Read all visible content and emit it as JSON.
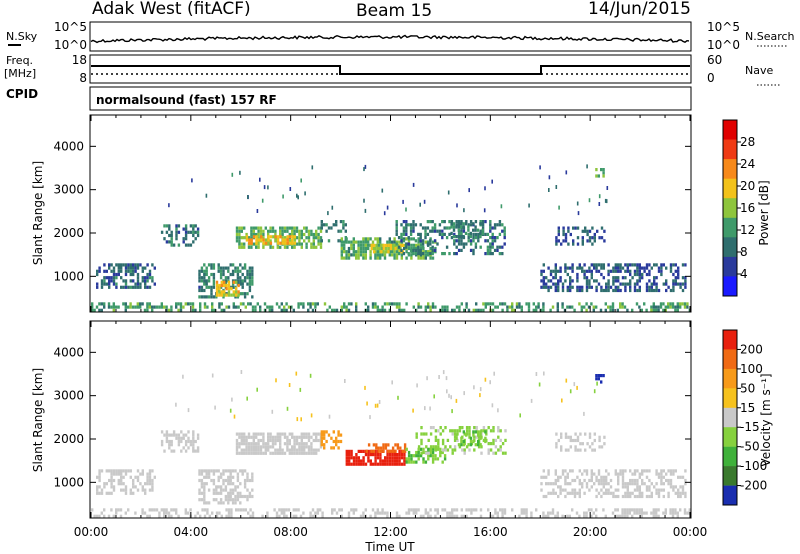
{
  "header": {
    "radar": "Adak West (fitACF)",
    "beam": "Beam 15",
    "date": "14/Jun/2015"
  },
  "noise_panel": {
    "left_label": "N.Sky",
    "right_label": "N.Search",
    "ticks_left": [
      "10^5",
      "10^0"
    ],
    "ticks_right": [
      "10^5",
      "10^0"
    ]
  },
  "freq_panel": {
    "left_label_1": "Freq.",
    "left_label_2": "[MHz]",
    "right_label": "Nave",
    "ticks_left": [
      "18",
      "8"
    ],
    "ticks_right": [
      "60",
      "0"
    ]
  },
  "cpid_panel": {
    "label": "CPID",
    "text": "normalsound (fast) 157 RF"
  },
  "colors": {
    "power_scale": [
      "#1a1aff",
      "#2a3a9c",
      "#2f6e6e",
      "#3f9a6a",
      "#8ec53c",
      "#f3c21a",
      "#f7891a",
      "#ef3a14",
      "#e00000"
    ],
    "velocity_scale": [
      "#1a2eb0",
      "#3a7a2e",
      "#3fb13a",
      "#86d13e",
      "#c9c9c9",
      "#f6c21e",
      "#f79a1a",
      "#f06a14",
      "#e8200e"
    ]
  },
  "chart_data": [
    {
      "type": "heatmap",
      "name": "power",
      "xlabel": "",
      "ylabel": "Slant Range [km]",
      "y_ticks": [
        "1000",
        "2000",
        "3000",
        "4000"
      ],
      "ylim": [
        200,
        4700
      ],
      "xlim": [
        0,
        24
      ],
      "colorbar": {
        "label": "Power [dB]",
        "ticks": [
          "4",
          "8",
          "12",
          "16",
          "20",
          "24",
          "28"
        ]
      },
      "regions": [
        {
          "t0": 0.2,
          "t1": 2.6,
          "r0": 750,
          "r1": 1300,
          "v": 8,
          "d": 0.55
        },
        {
          "t0": 2.8,
          "t1": 4.3,
          "r0": 1700,
          "r1": 2200,
          "v": 9,
          "d": 0.45
        },
        {
          "t0": 4.3,
          "t1": 6.5,
          "r0": 550,
          "r1": 1300,
          "v": 10,
          "d": 0.55
        },
        {
          "t0": 5.0,
          "t1": 5.9,
          "r0": 550,
          "r1": 900,
          "v": 19,
          "d": 0.75
        },
        {
          "t0": 5.8,
          "t1": 9.2,
          "r0": 1650,
          "r1": 2150,
          "v": 14,
          "d": 0.7
        },
        {
          "t0": 6.2,
          "t1": 8.2,
          "r0": 1800,
          "r1": 1950,
          "v": 20,
          "d": 0.7
        },
        {
          "t0": 9.2,
          "t1": 10.2,
          "r0": 1800,
          "r1": 2300,
          "v": 10,
          "d": 0.45
        },
        {
          "t0": 10.0,
          "t1": 13.8,
          "r0": 1450,
          "r1": 1900,
          "v": 13,
          "d": 0.7
        },
        {
          "t0": 11.2,
          "t1": 12.5,
          "r0": 1600,
          "r1": 1750,
          "v": 17,
          "d": 0.65
        },
        {
          "t0": 12.2,
          "t1": 16.6,
          "r0": 1550,
          "r1": 2300,
          "v": 9,
          "d": 0.45
        },
        {
          "t0": 14.4,
          "t1": 15.7,
          "r0": 1900,
          "r1": 2250,
          "v": 11,
          "d": 0.5
        },
        {
          "t0": 18.0,
          "t1": 23.8,
          "r0": 650,
          "r1": 1300,
          "v": 7,
          "d": 0.5
        },
        {
          "t0": 18.6,
          "t1": 20.6,
          "r0": 1750,
          "r1": 2150,
          "v": 7,
          "d": 0.35
        },
        {
          "t0": 20.2,
          "t1": 20.5,
          "r0": 3300,
          "r1": 3500,
          "v": 14,
          "d": 0.6
        },
        {
          "t0": 0.0,
          "t1": 24.0,
          "r0": 200,
          "r1": 400,
          "v": 12,
          "d": 0.45
        }
      ]
    },
    {
      "type": "heatmap",
      "name": "velocity",
      "xlabel": "Time UT",
      "ylabel": "Slant Range [km]",
      "x_ticks": [
        "00:00",
        "04:00",
        "08:00",
        "12:00",
        "16:00",
        "20:00",
        "00:00"
      ],
      "y_ticks": [
        "1000",
        "2000",
        "3000",
        "4000"
      ],
      "ylim": [
        200,
        4700
      ],
      "xlim": [
        0,
        24
      ],
      "colorbar": {
        "label": "Velocity [m s⁻¹]",
        "ticks": [
          "200",
          "100",
          "50",
          "15",
          "-15",
          "-50",
          "-100",
          "-200"
        ]
      },
      "regions": [
        {
          "t0": 0.2,
          "t1": 2.6,
          "r0": 750,
          "r1": 1300,
          "v": 0,
          "d": 0.5
        },
        {
          "t0": 2.8,
          "t1": 4.3,
          "r0": 1700,
          "r1": 2200,
          "v": 0,
          "d": 0.4
        },
        {
          "t0": 4.3,
          "t1": 6.5,
          "r0": 550,
          "r1": 1300,
          "v": 0,
          "d": 0.55
        },
        {
          "t0": 5.8,
          "t1": 9.2,
          "r0": 1650,
          "r1": 2150,
          "v": 0,
          "d": 0.7
        },
        {
          "t0": 9.2,
          "t1": 10.0,
          "r0": 1800,
          "r1": 2200,
          "v": -60,
          "d": 0.5
        },
        {
          "t0": 10.2,
          "t1": 12.6,
          "r0": 1400,
          "r1": 1750,
          "v": -180,
          "d": 0.8
        },
        {
          "t0": 11.0,
          "t1": 12.6,
          "r0": 1750,
          "r1": 1900,
          "v": -110,
          "d": 0.6
        },
        {
          "t0": 12.6,
          "t1": 14.2,
          "r0": 1500,
          "r1": 1800,
          "v": 30,
          "d": 0.65
        },
        {
          "t0": 13.0,
          "t1": 16.6,
          "r0": 1700,
          "r1": 2300,
          "v": 20,
          "d": 0.4
        },
        {
          "t0": 14.6,
          "t1": 15.8,
          "r0": 1900,
          "r1": 2200,
          "v": 30,
          "d": 0.5
        },
        {
          "t0": 18.0,
          "t1": 23.8,
          "r0": 650,
          "r1": 1300,
          "v": 0,
          "d": 0.45
        },
        {
          "t0": 18.6,
          "t1": 20.6,
          "r0": 1750,
          "r1": 2150,
          "v": 0,
          "d": 0.35
        },
        {
          "t0": 20.2,
          "t1": 20.5,
          "r0": 3300,
          "r1": 3500,
          "v": 220,
          "d": 0.6
        },
        {
          "t0": 0.0,
          "t1": 24.0,
          "r0": 200,
          "r1": 400,
          "v": 0,
          "d": 0.4
        }
      ]
    }
  ]
}
